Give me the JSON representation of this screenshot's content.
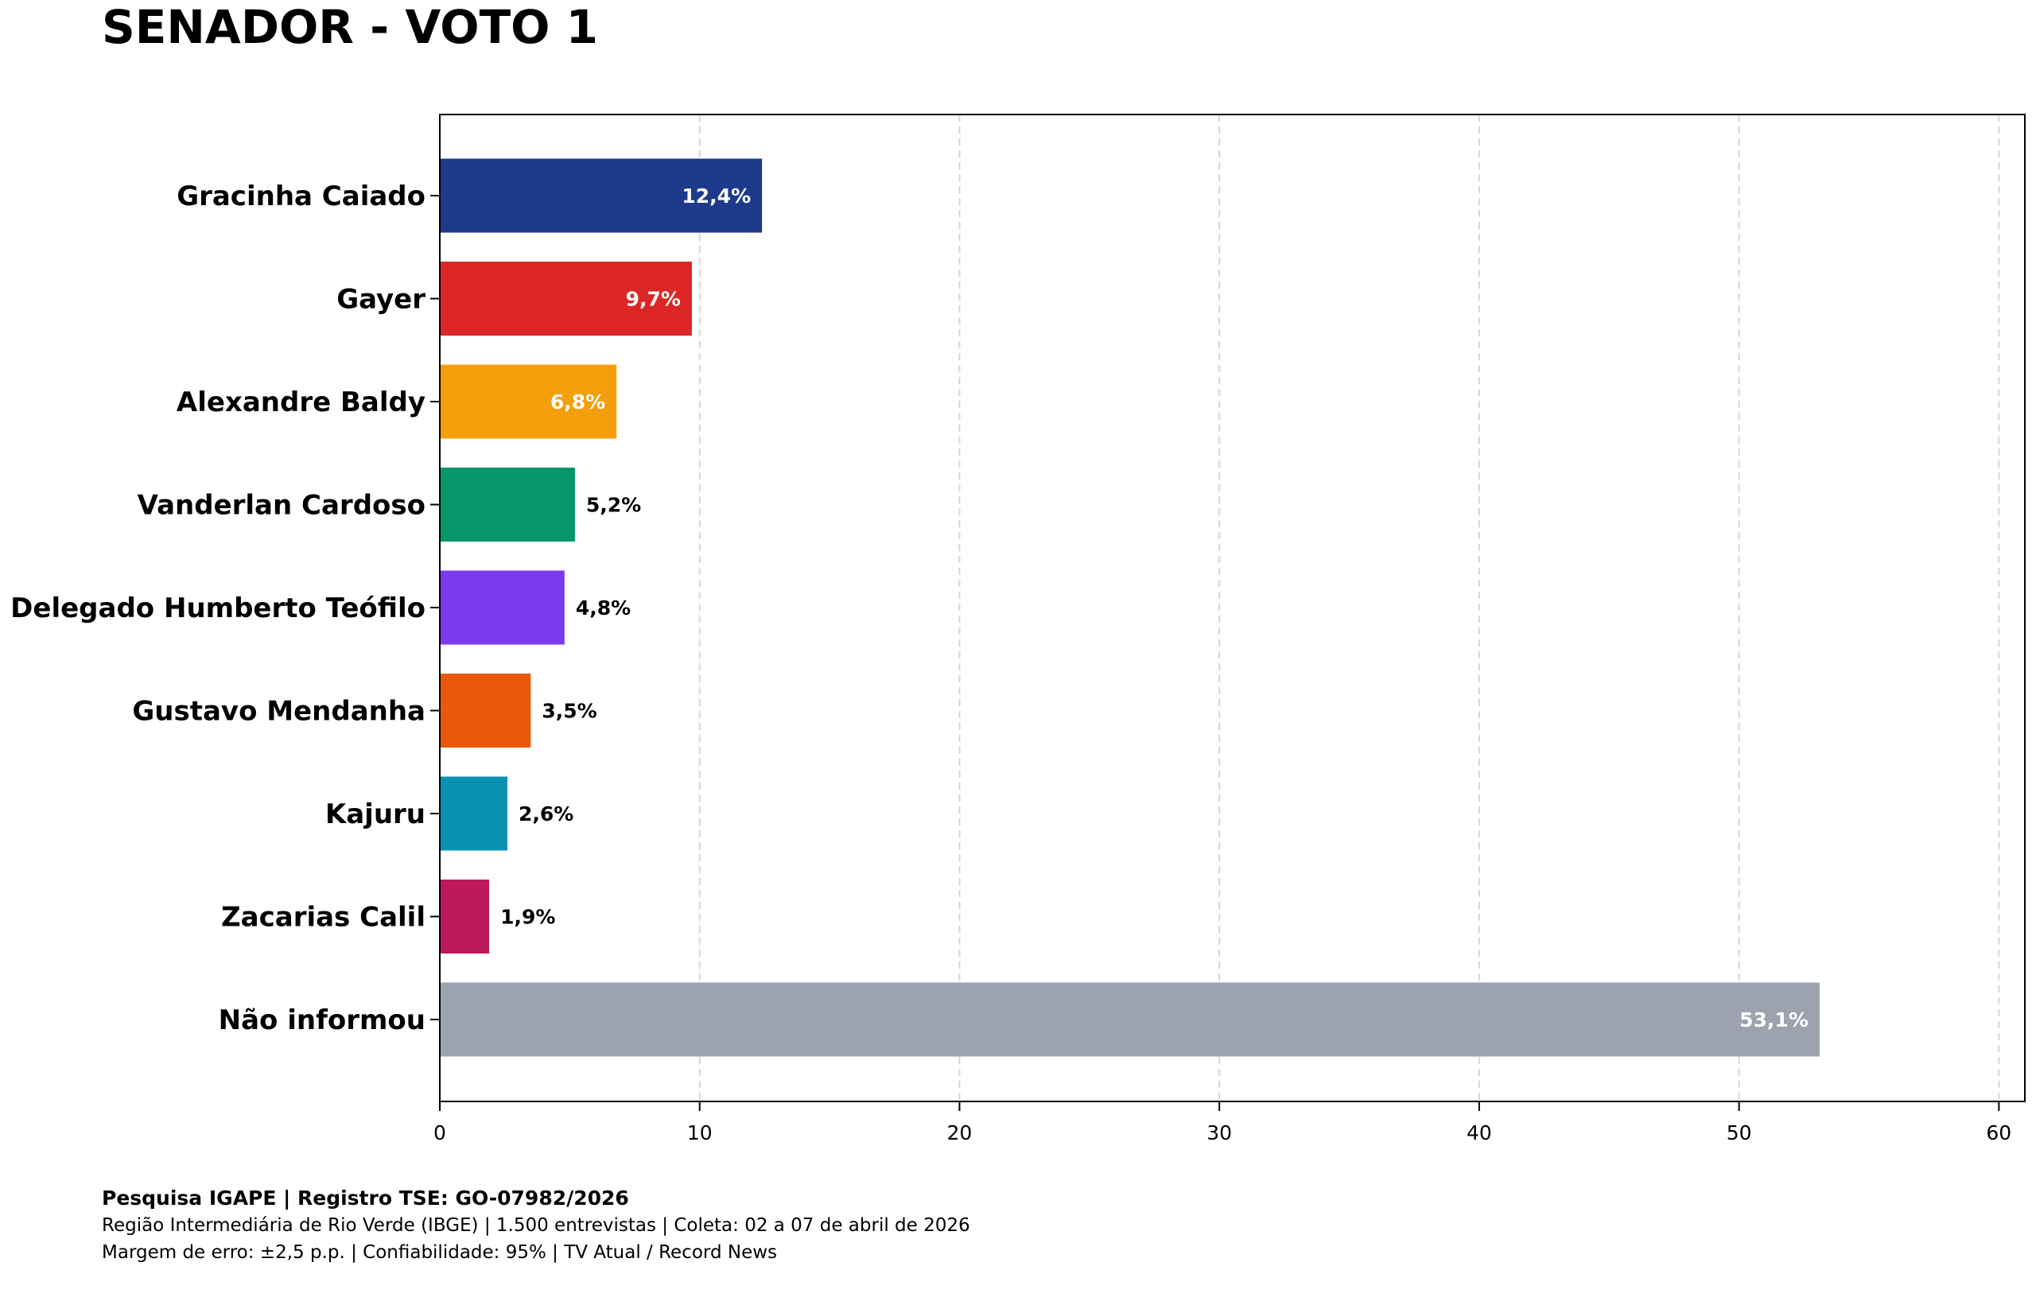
{
  "title": "SENADOR - VOTO 1",
  "chart_data": {
    "type": "bar",
    "orientation": "horizontal",
    "title": "SENADOR - VOTO 1",
    "xlabel": "",
    "ylabel": "",
    "xlim": [
      0,
      61
    ],
    "xticks": [
      0,
      10,
      20,
      30,
      40,
      50,
      60
    ],
    "grid": "vertical dashed",
    "categories": [
      "Gracinha Caiado",
      "Gayer",
      "Alexandre Baldy",
      "Vanderlan Cardoso",
      "Delegado Humberto Teófilo",
      "Gustavo Mendanha",
      "Kajuru",
      "Zacarias Calil",
      "Não informou"
    ],
    "values": [
      12.4,
      9.7,
      6.8,
      5.2,
      4.8,
      3.5,
      2.6,
      1.9,
      53.1
    ],
    "value_labels": [
      "12,4%",
      "9,7%",
      "6,8%",
      "5,2%",
      "4,8%",
      "3,5%",
      "2,6%",
      "1,9%",
      "53,1%"
    ],
    "colors": [
      "#1e3a8a",
      "#dc2626",
      "#f59e0b",
      "#059669",
      "#7c3aed",
      "#ea580c",
      "#0891b2",
      "#be185d",
      "#9ca3af"
    ]
  },
  "footer": {
    "line1": "Pesquisa IGAPE | Registro TSE: GO-07982/2026",
    "line2": "Região Intermediária de Rio Verde (IBGE) | 1.500 entrevistas | Coleta: 02 a 07 de abril de 2026",
    "line3": "Margem de erro: ±2,5 p.p. | Confiabilidade: 95% | TV Atual / Record News"
  }
}
